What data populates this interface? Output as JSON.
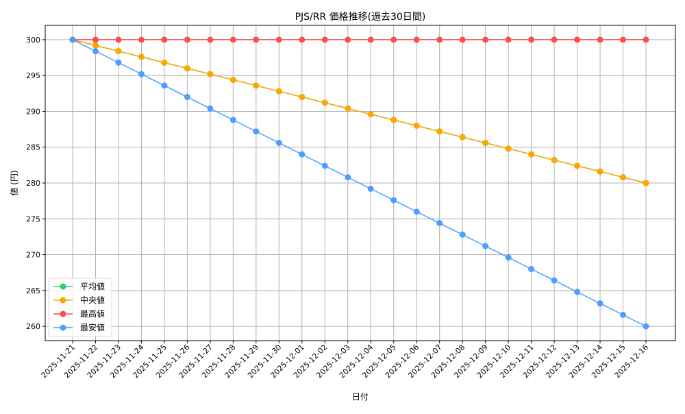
{
  "chart_data": {
    "type": "line",
    "title": "PJS/RR 価格推移(過去30日間)",
    "xlabel": "日付",
    "ylabel": "値 (円)",
    "ylim": [
      258,
      302
    ],
    "yticks": [
      260,
      265,
      270,
      275,
      280,
      285,
      290,
      295,
      300
    ],
    "grid": true,
    "legend_position": "lower-left",
    "x": [
      "2025-11-21",
      "2025-11-22",
      "2025-11-23",
      "2025-11-24",
      "2025-11-25",
      "2025-11-26",
      "2025-11-27",
      "2025-11-28",
      "2025-11-29",
      "2025-11-30",
      "2025-12-01",
      "2025-12-02",
      "2025-12-03",
      "2025-12-04",
      "2025-12-05",
      "2025-12-06",
      "2025-12-07",
      "2025-12-08",
      "2025-12-09",
      "2025-12-10",
      "2025-12-11",
      "2025-12-12",
      "2025-12-13",
      "2025-12-14",
      "2025-12-15",
      "2025-12-16"
    ],
    "series": [
      {
        "name": "平均値",
        "color": "#2ecc71",
        "values": [
          300,
          299.2,
          298.4,
          297.6,
          296.8,
          296,
          295.2,
          294.4,
          293.6,
          292.8,
          292,
          291.2,
          290.4,
          289.6,
          288.8,
          288,
          287.2,
          286.4,
          285.6,
          284.8,
          284,
          283.2,
          282.4,
          281.6,
          280.8,
          280
        ]
      },
      {
        "name": "中央値",
        "color": "#ffa500",
        "values": [
          300,
          299.2,
          298.4,
          297.6,
          296.8,
          296,
          295.2,
          294.4,
          293.6,
          292.8,
          292,
          291.2,
          290.4,
          289.6,
          288.8,
          288,
          287.2,
          286.4,
          285.6,
          284.8,
          284,
          283.2,
          282.4,
          281.6,
          280.8,
          280
        ]
      },
      {
        "name": "最高値",
        "color": "#ff4d4d",
        "values": [
          300,
          300,
          300,
          300,
          300,
          300,
          300,
          300,
          300,
          300,
          300,
          300,
          300,
          300,
          300,
          300,
          300,
          300,
          300,
          300,
          300,
          300,
          300,
          300,
          300,
          300
        ]
      },
      {
        "name": "最安値",
        "color": "#4d9eff",
        "values": [
          300,
          298.4,
          296.8,
          295.2,
          293.6,
          292,
          290.4,
          288.8,
          287.2,
          285.6,
          284,
          282.4,
          280.8,
          279.2,
          277.6,
          276,
          274.4,
          272.8,
          271.2,
          269.6,
          268,
          266.4,
          264.8,
          263.2,
          261.6,
          260
        ]
      }
    ]
  }
}
